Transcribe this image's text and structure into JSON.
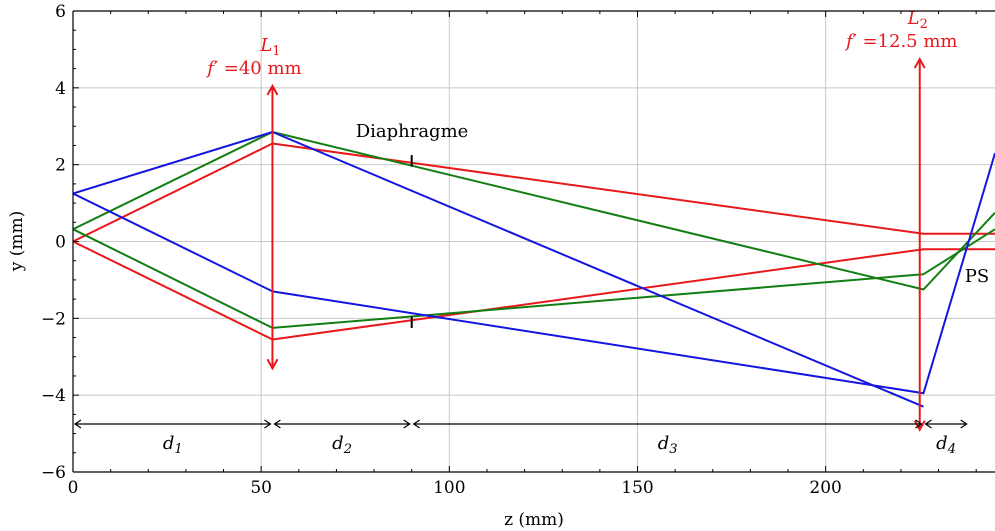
{
  "chart_data": {
    "type": "line",
    "xlabel": "z (mm)",
    "ylabel": "y (mm)",
    "xlim": [
      0,
      245
    ],
    "ylim": [
      -6,
      6
    ],
    "grid": true,
    "x_ticks": [
      0,
      50,
      100,
      150,
      200
    ],
    "y_ticks": [
      -6,
      -4,
      -2,
      0,
      2,
      4,
      6
    ],
    "x_tick_labels": [
      "0",
      "50",
      "100",
      "150",
      "200"
    ],
    "y_tick_labels": [
      "−6",
      "−4",
      "−2",
      "0",
      "2",
      "4",
      "6"
    ],
    "colors": {
      "red": "#e8191c",
      "green": "#127f12",
      "blue": "#1515e0",
      "black": "#000000"
    },
    "rays": [
      {
        "color": "#e8191c",
        "points": [
          [
            0,
            0
          ],
          [
            53,
            2.55
          ],
          [
            226,
            0.2
          ],
          [
            245,
            0.2
          ]
        ]
      },
      {
        "color": "#e8191c",
        "points": [
          [
            0,
            0
          ],
          [
            53,
            -2.55
          ],
          [
            226,
            -0.2
          ],
          [
            245,
            -0.2
          ]
        ]
      },
      {
        "color": "#127f12",
        "points": [
          [
            0,
            0.32
          ],
          [
            53,
            2.85
          ],
          [
            226,
            -1.25
          ],
          [
            245,
            0.75
          ]
        ]
      },
      {
        "color": "#127f12",
        "points": [
          [
            0,
            0.32
          ],
          [
            53,
            -2.25
          ],
          [
            226,
            -0.85
          ],
          [
            245,
            0.32
          ]
        ]
      },
      {
        "color": "#1515e0",
        "points": [
          [
            0,
            1.25
          ],
          [
            53,
            2.85
          ],
          [
            226,
            -4.3
          ]
        ]
      },
      {
        "color": "#1515e0",
        "points": [
          [
            0,
            1.25
          ],
          [
            53,
            -1.3
          ],
          [
            226,
            -3.95
          ],
          [
            245,
            2.3
          ]
        ]
      }
    ],
    "lenses": [
      {
        "z": 53,
        "y_min": -3.3,
        "y_max": 4.05,
        "color": "#e8191c",
        "name": "L",
        "sub": "1",
        "focal_prefix": "f′ =",
        "focal_value": "40 mm"
      },
      {
        "z": 225,
        "y_min": -4.9,
        "y_max": 4.75,
        "color": "#e8191c",
        "name": "L",
        "sub": "2",
        "focal_prefix": "f′ =",
        "focal_value": "12.5 mm"
      }
    ],
    "diaphragm": {
      "z": 90,
      "aperture": 2.0,
      "label": "Diaphragme"
    },
    "ps_label": "PS",
    "distances": {
      "y": -4.75,
      "segments": [
        {
          "from": 0,
          "to": 53,
          "label": "d",
          "sub": "1"
        },
        {
          "from": 53,
          "to": 90,
          "label": "d",
          "sub": "2"
        },
        {
          "from": 90,
          "to": 226,
          "label": "d",
          "sub": "3"
        },
        {
          "from": 226,
          "to": 238,
          "label": "d",
          "sub": "4"
        }
      ]
    }
  }
}
